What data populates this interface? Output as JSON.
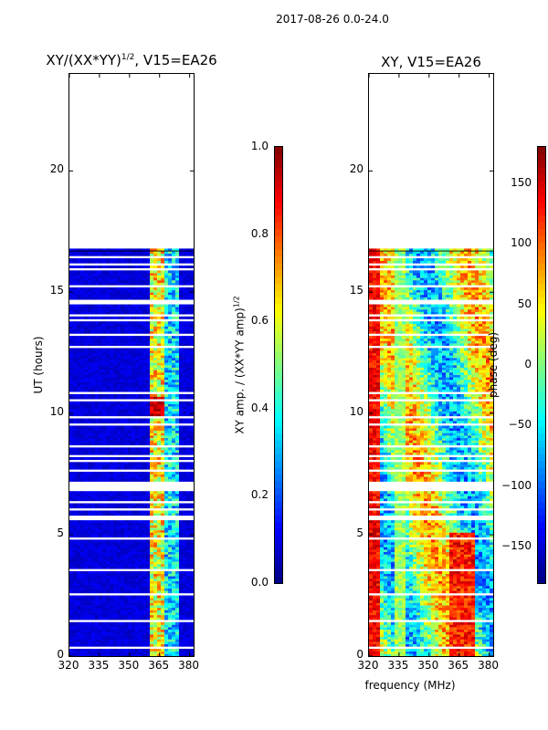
{
  "figure": {
    "suptitle": "2017-08-26 0.0-24.0",
    "shared_xlabel": "frequency (MHz)"
  },
  "chart_data": [
    {
      "type": "heatmap",
      "title_main": "XY/(XX*YY)",
      "title_sup": "1/2",
      "title_tail": ", V15=EA26",
      "xlabel": "",
      "ylabel": "UT (hours)",
      "xlim": [
        320,
        382
      ],
      "ylim": [
        0,
        24
      ],
      "x_ticks": [
        320,
        335,
        350,
        365,
        380
      ],
      "y_ticks": [
        0,
        5,
        10,
        15,
        20
      ],
      "data_time_range": [
        0,
        16.7
      ],
      "bright_band_mhz": [
        360,
        368
      ],
      "colorbar": {
        "label_main": "XY amp. / (XX*YY amp)",
        "label_sup": "1/2",
        "range": [
          0.0,
          1.0
        ],
        "ticks": [
          "0.0",
          "0.2",
          "0.4",
          "0.6",
          "0.8",
          "1.0"
        ],
        "colormap": "jet"
      }
    },
    {
      "type": "heatmap",
      "title": "XY, V15=EA26",
      "xlabel": "",
      "ylabel": "",
      "xlim": [
        320,
        382
      ],
      "ylim": [
        0,
        24
      ],
      "x_ticks": [
        320,
        335,
        350,
        365,
        380
      ],
      "y_ticks": [
        0,
        5,
        10,
        15,
        20
      ],
      "data_time_range": [
        0,
        16.7
      ],
      "colorbar": {
        "label": "phase (deg)",
        "range": [
          -180,
          180
        ],
        "ticks": [
          "−150",
          "−100",
          "−50",
          "0",
          "50",
          "100",
          "150"
        ],
        "tick_values": [
          -150,
          -100,
          -50,
          0,
          50,
          100,
          150
        ],
        "colormap": "jet"
      }
    }
  ]
}
